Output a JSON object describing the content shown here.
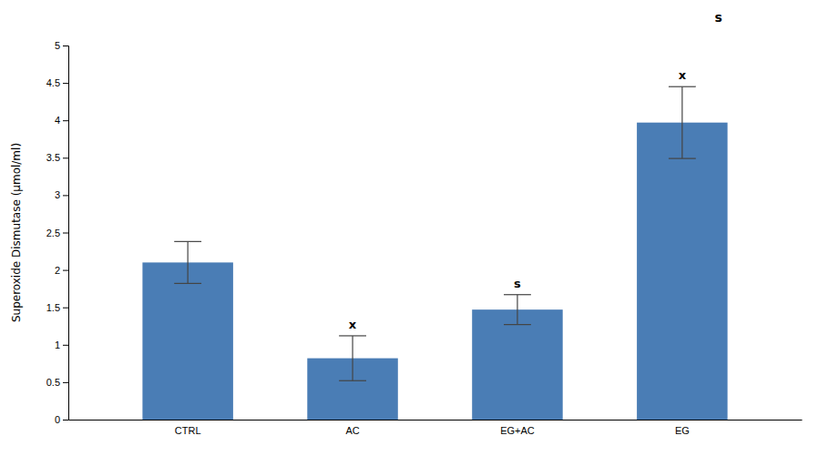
{
  "chart_data": {
    "type": "bar",
    "ylabel": "Superoxide Dismutase (μmol/ml)",
    "categories": [
      "CTRL",
      "AC",
      "EG+AC",
      "EG"
    ],
    "values": [
      2.1,
      0.82,
      1.47,
      3.97
    ],
    "errors": [
      0.28,
      0.3,
      0.2,
      0.48
    ],
    "color": "#4a7db5",
    "ylim": [
      0,
      5.0
    ],
    "yticks": [
      0,
      0.5,
      1,
      1.5,
      2,
      2.5,
      3,
      3.5,
      4,
      4.5,
      5
    ],
    "grid": false,
    "annotations": [
      {
        "text": "x",
        "category": "AC"
      },
      {
        "text": "s",
        "category": "EG+AC"
      },
      {
        "text": "x",
        "category": "EG"
      },
      {
        "text": "s"
      }
    ]
  }
}
